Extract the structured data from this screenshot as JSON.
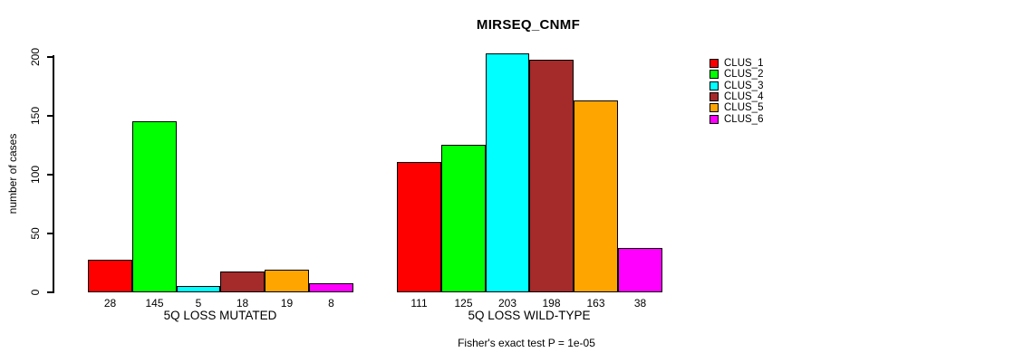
{
  "chart": {
    "title": "MIRSEQ_CNMF",
    "ylabel": "number of cases",
    "footnote": "Fisher's exact test P = 1e-05"
  },
  "chart_data": {
    "type": "bar",
    "title": "MIRSEQ_CNMF",
    "xlabel": "",
    "ylabel": "number of cases",
    "categories": [
      "5Q LOSS MUTATED",
      "5Q LOSS WILD-TYPE"
    ],
    "series": [
      {
        "name": "CLUS_1",
        "color": "#FF0000",
        "values": [
          28,
          111
        ]
      },
      {
        "name": "CLUS_2",
        "color": "#00FF00",
        "values": [
          145,
          125
        ]
      },
      {
        "name": "CLUS_3",
        "color": "#00FFFF",
        "values": [
          5,
          203
        ]
      },
      {
        "name": "CLUS_4",
        "color": "#A52A2A",
        "values": [
          18,
          198
        ]
      },
      {
        "name": "CLUS_5",
        "color": "#FFA500",
        "values": [
          19,
          163
        ]
      },
      {
        "name": "CLUS_6",
        "color": "#FF00FF",
        "values": [
          8,
          38
        ]
      }
    ],
    "bar_value_labels": [
      [
        28,
        145,
        5,
        18,
        19,
        8
      ],
      [
        111,
        125,
        203,
        198,
        163,
        38
      ]
    ],
    "yticks": [
      0,
      50,
      100,
      150,
      200
    ],
    "ylim": [
      0,
      205
    ],
    "grid": false,
    "legend_position": "right",
    "annotation": "Fisher's exact test P = 1e-05"
  }
}
